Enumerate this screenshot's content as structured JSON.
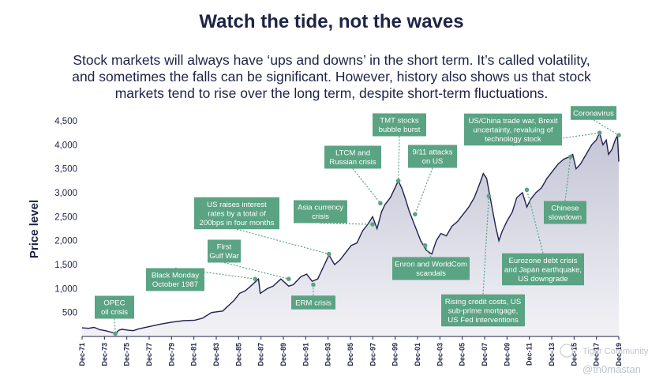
{
  "header": {
    "title": "Watch the tide, not the waves",
    "subtitle_lines": [
      "Stock markets will always have ‘ups and downs’ in the short term. It’s called volatility,",
      "and sometimes the falls can be significant. However, history also shows us that stock",
      "markets tend to rise over the long term, despite short-term fluctuations."
    ]
  },
  "watermark": {
    "text1": "Tiger Community",
    "text2": "@th0mastan"
  },
  "colors": {
    "text": "#1e2347",
    "line": "#1f2050",
    "annotation": "#5aa383",
    "area_top": "#c4c5d6",
    "area_bottom": "#f2f2f6"
  },
  "chart_data": {
    "type": "area",
    "title": "",
    "xlabel": "",
    "ylabel": "Price level",
    "ylim": [
      0,
      4500
    ],
    "yticks": [
      500,
      1000,
      1500,
      2000,
      2500,
      3000,
      3500,
      4000,
      4500
    ],
    "ytick_labels": [
      "500",
      "1,000",
      "1,500",
      "2,000",
      "2,500",
      "3,000",
      "3,500",
      "4,000",
      "4,500"
    ],
    "xlim": [
      1971.92,
      2019.92
    ],
    "xtick_labels": [
      "Dec-71",
      "Dec-73",
      "Dec-75",
      "Dec-77",
      "Dec-79",
      "Dec-81",
      "Dec-83",
      "Dec-85",
      "Dec-87",
      "Dec-89",
      "Dec-91",
      "Dec-93",
      "Dec-95",
      "Dec-97",
      "Dec-99",
      "Dec-01",
      "Dec-03",
      "Dec-05",
      "Dec-07",
      "Dec-09",
      "Dec-11",
      "Dec-13",
      "Dec-15",
      "Dec-17",
      "Dec-19"
    ],
    "series": [
      {
        "x": [
          1971.92,
          1972.5,
          1973.0,
          1973.5,
          1974.0,
          1974.5,
          1974.9,
          1975.2,
          1975.5,
          1976.0,
          1976.5,
          1977.0,
          1978.0,
          1979.0,
          1980.0,
          1981.0,
          1982.0,
          1982.7,
          1983.5,
          1984.5,
          1985.5,
          1986.0,
          1986.5,
          1987.0,
          1987.7,
          1987.85,
          1988.5,
          1989.0,
          1989.7,
          1990.4,
          1990.8,
          1991.5,
          1992.0,
          1992.5,
          1993.0,
          1993.5,
          1994.0,
          1994.5,
          1995.0,
          1995.5,
          1996.0,
          1996.5,
          1997.0,
          1997.5,
          1997.9,
          1998.3,
          1998.7,
          1999.0,
          1999.5,
          1999.9,
          2000.2,
          2000.5,
          2000.8,
          2001.2,
          2001.7,
          2002.2,
          2002.7,
          2003.0,
          2003.2,
          2003.6,
          2004.0,
          2004.5,
          2005.0,
          2005.5,
          2006.0,
          2006.5,
          2007.0,
          2007.5,
          2007.8,
          2008.1,
          2008.5,
          2008.9,
          2009.2,
          2009.5,
          2009.9,
          2010.4,
          2010.8,
          2011.3,
          2011.7,
          2012.0,
          2012.5,
          2013.0,
          2013.5,
          2014.0,
          2014.5,
          2015.0,
          2015.5,
          2015.8,
          2016.1,
          2016.5,
          2017.0,
          2017.5,
          2017.9,
          2018.2,
          2018.5,
          2018.8,
          2019.0,
          2019.3,
          2019.6,
          2019.8,
          2019.92
        ],
        "values": [
          180,
          170,
          190,
          140,
          120,
          90,
          60,
          130,
          150,
          130,
          120,
          160,
          210,
          260,
          300,
          330,
          340,
          380,
          500,
          530,
          750,
          900,
          950,
          1050,
          1200,
          900,
          1000,
          1050,
          1200,
          1050,
          1080,
          1250,
          1300,
          1150,
          1200,
          1450,
          1700,
          1500,
          1600,
          1750,
          1900,
          1950,
          2200,
          2350,
          2500,
          2250,
          2600,
          2750,
          2900,
          3100,
          3250,
          3100,
          2900,
          2600,
          2300,
          2000,
          1800,
          1750,
          1720,
          2000,
          2150,
          2100,
          2300,
          2400,
          2550,
          2700,
          2900,
          3200,
          3400,
          3300,
          2800,
          2300,
          2000,
          2200,
          2400,
          2600,
          2900,
          3000,
          2700,
          2850,
          3000,
          3100,
          3300,
          3450,
          3600,
          3700,
          3750,
          3800,
          3500,
          3600,
          3800,
          4000,
          4100,
          4250,
          4000,
          4100,
          3800,
          3900,
          4100,
          4200,
          3650
        ]
      }
    ],
    "annotations": [
      {
        "label_lines": [
          "OPEC",
          "oil crisis"
        ],
        "x": 1974.9,
        "y": 60
      },
      {
        "label_lines": [
          "Black Monday",
          "October 1987"
        ],
        "x": 1987.4,
        "y": 1200
      },
      {
        "label_lines": [
          "First",
          "Gulf War"
        ],
        "x": 1990.4,
        "y": 1200
      },
      {
        "label_lines": [
          "ERM crisis"
        ],
        "x": 1992.6,
        "y": 1080
      },
      {
        "label_lines": [
          "US raises interest",
          "rates by a total of",
          "200bps in four months"
        ],
        "x": 1994.0,
        "y": 1720
      },
      {
        "label_lines": [
          "Asia currency",
          "crisis"
        ],
        "x": 1997.9,
        "y": 2340
      },
      {
        "label_lines": [
          "LTCM and",
          "Russian crisis"
        ],
        "x": 1998.6,
        "y": 2780
      },
      {
        "label_lines": [
          "TMT stocks",
          "bubble burst"
        ],
        "x": 2000.2,
        "y": 3250
      },
      {
        "label_lines": [
          "9/11 attacks",
          "on US"
        ],
        "x": 2001.7,
        "y": 2550
      },
      {
        "label_lines": [
          "Enron and WorldCom",
          "scandals"
        ],
        "x": 2002.6,
        "y": 1900
      },
      {
        "label_lines": [
          "Rising credit costs, US",
          "sub-prime mortgage,",
          "US Fed interventions"
        ],
        "x": 2008.3,
        "y": 2930
      },
      {
        "label_lines": [
          "Eurozone debt crisis",
          "and Japan earthquake,",
          "US downgrade"
        ],
        "x": 2011.7,
        "y": 3060
      },
      {
        "label_lines": [
          "US/China trade war, Brexit",
          "uncertainty, revaluing of",
          "technology stock"
        ],
        "x": 2018.2,
        "y": 4250
      },
      {
        "label_lines": [
          "Chinese",
          "slowdown"
        ],
        "x": 2015.6,
        "y": 3750
      },
      {
        "label_lines": [
          "Coronavirus"
        ],
        "x": 2019.92,
        "y": 4200
      }
    ]
  }
}
